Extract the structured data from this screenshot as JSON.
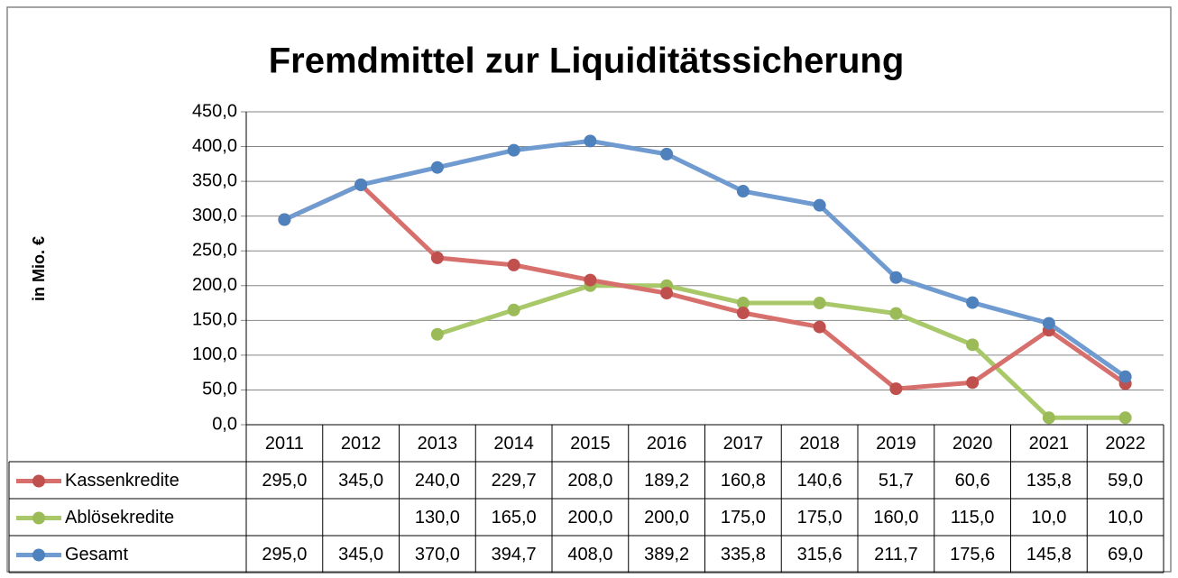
{
  "chart_data": {
    "type": "line",
    "title": "Fremdmittel zur Liquiditätssicherung",
    "y_label": "in Mio. €",
    "categories": [
      "2011",
      "2012",
      "2013",
      "2014",
      "2015",
      "2016",
      "2017",
      "2018",
      "2019",
      "2020",
      "2021",
      "2022"
    ],
    "series": [
      {
        "name": "Kassenkredite",
        "color": "#c0504d",
        "values": [
          295,
          345,
          240,
          229.7,
          208,
          189.2,
          160.8,
          140.6,
          51.7,
          60.6,
          135.8,
          59
        ],
        "value_labels": [
          "295,0",
          "345,0",
          "240,0",
          "229,7",
          "208,0",
          "189,2",
          "160,8",
          "140,6",
          "51,7",
          "60,6",
          "135,8",
          "59,0"
        ]
      },
      {
        "name": "Ablösekredite",
        "color": "#9bbb59",
        "values": [
          null,
          null,
          130,
          165,
          200,
          200,
          175,
          175,
          160,
          115,
          10,
          10
        ],
        "value_labels": [
          null,
          null,
          "130,0",
          "165,0",
          "200,0",
          "200,0",
          "175,0",
          "175,0",
          "160,0",
          "115,0",
          "10,0",
          "10,0"
        ]
      },
      {
        "name": "Gesamt",
        "color": "#4f81bd",
        "values": [
          295,
          345,
          370,
          394.7,
          408,
          389.2,
          335.8,
          315.6,
          211.7,
          175.6,
          145.8,
          69
        ],
        "value_labels": [
          "295,0",
          "345,0",
          "370,0",
          "394,7",
          "408,0",
          "389,2",
          "335,8",
          "315,6",
          "211,7",
          "175,6",
          "145,8",
          "69,0"
        ]
      }
    ],
    "ylim": [
      0,
      450
    ],
    "yticks": [
      {
        "value": 0,
        "label": "0,0"
      },
      {
        "value": 50,
        "label": "50,0"
      },
      {
        "value": 100,
        "label": "100,0"
      },
      {
        "value": 150,
        "label": "150,0"
      },
      {
        "value": 200,
        "label": "200,0"
      },
      {
        "value": 250,
        "label": "250,0"
      },
      {
        "value": 300,
        "label": "300,0"
      },
      {
        "value": 350,
        "label": "350,0"
      },
      {
        "value": 400,
        "label": "400,0"
      },
      {
        "value": 450,
        "label": "450,0"
      }
    ],
    "grid": true,
    "legend": "data-table"
  }
}
